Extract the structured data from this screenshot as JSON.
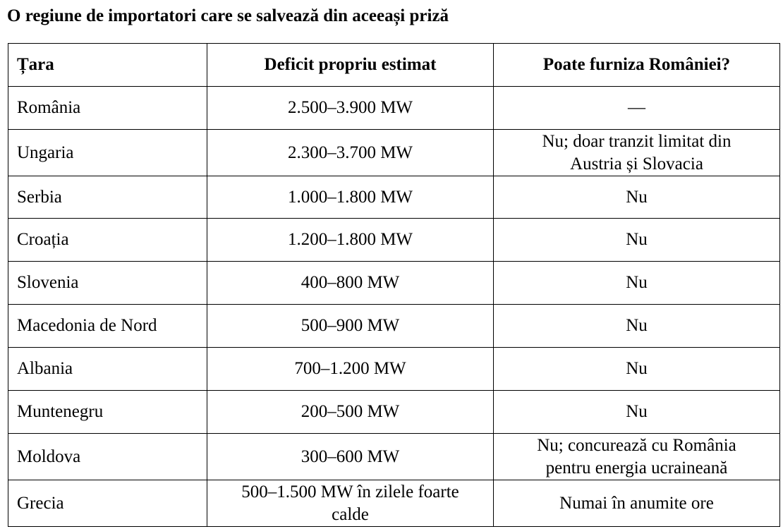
{
  "title": "O regiune de importatori care se salvează din aceeași priză",
  "table": {
    "headers": [
      "Țara",
      "Deficit propriu estimat",
      "Poate furniza României?"
    ],
    "rows": [
      {
        "country": "România",
        "deficit": "2.500–3.900 MW",
        "supply": "—"
      },
      {
        "country": "Ungaria",
        "deficit": "2.300–3.700 MW",
        "supply": "Nu; doar tranzit limitat din Austria și Slovacia"
      },
      {
        "country": "Serbia",
        "deficit": "1.000–1.800 MW",
        "supply": "Nu"
      },
      {
        "country": "Croația",
        "deficit": "1.200–1.800 MW",
        "supply": "Nu"
      },
      {
        "country": "Slovenia",
        "deficit": "400–800 MW",
        "supply": "Nu"
      },
      {
        "country": "Macedonia de Nord",
        "deficit": "500–900 MW",
        "supply": "Nu"
      },
      {
        "country": "Albania",
        "deficit": "700–1.200 MW",
        "supply": "Nu"
      },
      {
        "country": "Muntenegru",
        "deficit": "200–500 MW",
        "supply": "Nu"
      },
      {
        "country": "Moldova",
        "deficit": "300–600 MW",
        "supply": "Nu; concurează cu România pentru energia ucraineană"
      },
      {
        "country": "Grecia",
        "deficit": "500–1.500 MW în zilele foarte calde",
        "supply": "Numai în anumite ore"
      }
    ]
  }
}
